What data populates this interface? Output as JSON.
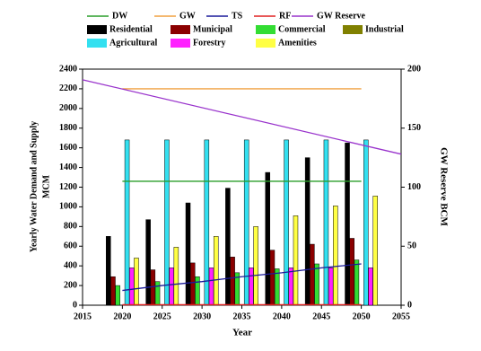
{
  "chart_data": {
    "type": "bar",
    "xlabel": "Year",
    "ylabel": [
      "Yearly Water Demand and Supply",
      "MCM"
    ],
    "y2label": "GW Reserve BCM",
    "xlim": [
      2015,
      2055
    ],
    "xticks": [
      2015,
      2020,
      2025,
      2030,
      2035,
      2040,
      2045,
      2050,
      2055
    ],
    "ylim": [
      0,
      2400
    ],
    "yticks": [
      0,
      200,
      400,
      600,
      800,
      1000,
      1200,
      1400,
      1600,
      1800,
      2000,
      2200,
      2400
    ],
    "y2lim": [
      0,
      200
    ],
    "y2ticks": [
      0,
      50,
      100,
      150,
      200
    ],
    "x": [
      2020,
      2025,
      2030,
      2035,
      2040,
      2045,
      2050
    ],
    "series": [
      {
        "name": "Residential",
        "color": "#000000",
        "values": [
          700,
          870,
          1040,
          1190,
          1350,
          1500,
          1650
        ]
      },
      {
        "name": "Municipal",
        "color": "#8b0000",
        "values": [
          290,
          360,
          430,
          490,
          560,
          620,
          680
        ]
      },
      {
        "name": "Commercial",
        "color": "#33dd33",
        "values": [
          200,
          240,
          290,
          330,
          370,
          420,
          460
        ]
      },
      {
        "name": "Industrial",
        "color": "#808000",
        "values": [
          0,
          0,
          0,
          0,
          0,
          0,
          0
        ]
      },
      {
        "name": "Agricultural",
        "color": "#33e0f0",
        "values": [
          1680,
          1680,
          1680,
          1680,
          1680,
          1680,
          1680
        ]
      },
      {
        "name": "Forestry",
        "color": "#ff22ff",
        "values": [
          380,
          380,
          380,
          380,
          380,
          380,
          380
        ]
      },
      {
        "name": "Amenities",
        "color": "#ffff44",
        "values": [
          480,
          590,
          700,
          800,
          910,
          1010,
          1110
        ]
      }
    ],
    "lines": [
      {
        "name": "DW",
        "color": "#2a9d2a",
        "x": [
          2020,
          2050
        ],
        "values": [
          1260,
          1260
        ]
      },
      {
        "name": "GW",
        "color": "#f0a040",
        "x": [
          2020,
          2050
        ],
        "values": [
          2200,
          2200
        ]
      },
      {
        "name": "TS",
        "color": "#1a1a9a",
        "x": [
          2020,
          2025,
          2030,
          2035,
          2040,
          2045,
          2050
        ],
        "values": [
          150,
          200,
          240,
          290,
          330,
          380,
          420
        ]
      },
      {
        "name": "RF",
        "color": "#e02020",
        "x": [
          2020,
          2050
        ],
        "values": [
          5,
          5
        ]
      },
      {
        "name": "GW Reserve",
        "color": "#9933cc",
        "axis": "y2",
        "x": [
          2015,
          2055
        ],
        "values": [
          191,
          128
        ]
      }
    ]
  }
}
